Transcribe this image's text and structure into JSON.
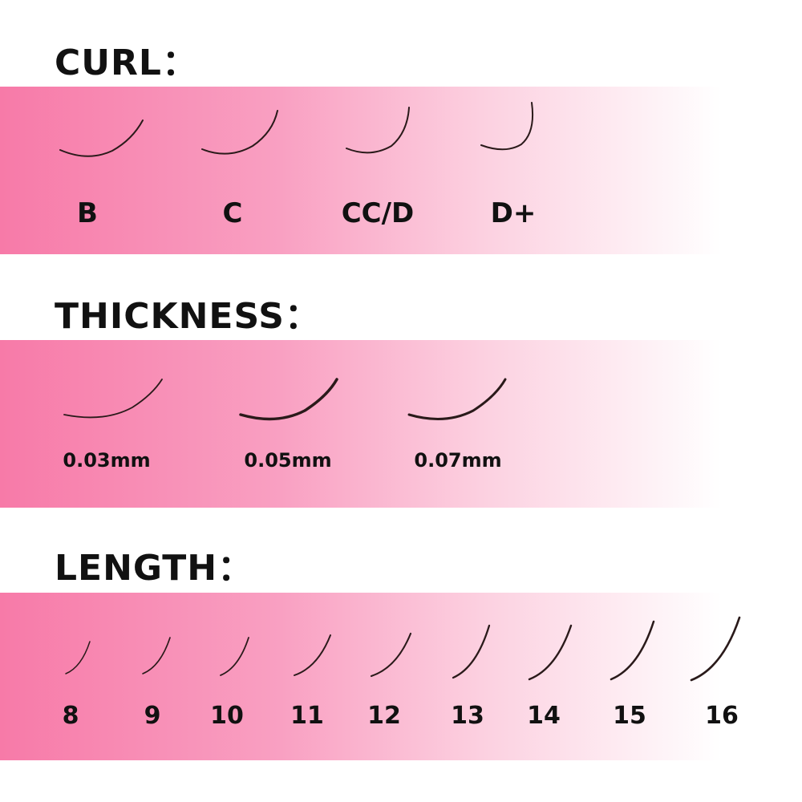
{
  "sections": {
    "curl": {
      "title": "CURL：",
      "labels": [
        "B",
        "C",
        "CC/D",
        "D+"
      ]
    },
    "thickness": {
      "title": "THICKNESS：",
      "labels": [
        "0.03mm",
        "0.05mm",
        "0.07mm"
      ]
    },
    "length": {
      "title": "LENGTH：",
      "labels": [
        "8",
        "9",
        "10",
        "11",
        "12",
        "13",
        "14",
        "15",
        "16"
      ]
    }
  },
  "colors": {
    "gradient_start": "#f77aa8",
    "gradient_end": "#ffffff",
    "lash": "#2a1a1a"
  },
  "icons": [
    "eyelash-icon"
  ]
}
